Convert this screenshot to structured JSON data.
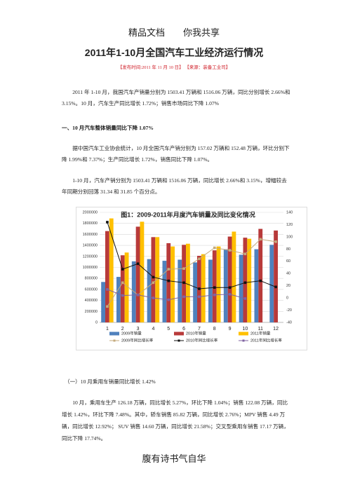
{
  "header": "精品文档　　你我共享",
  "title": "2011年1-10月全国汽车工业经济运行情况",
  "meta": "【发布时间:2011 年 11 月 10 日】 【来源：装备工业司】",
  "paragraphs": [
    "2011 年 1-10 月，我国汽车产销量分别为 1503.41 万辆和 1516.06 万辆，同比分别增长 2.66%和 3.15%。10 月，汽车生产同比增长 1.72%；销售市场同比下降 1.07%",
    "据中国汽车工业协会统计，10 月全国汽车产销分别为 157.02 万辆和 152.48 万辆，环比分别下降 1.99%和 7.37%；生产同比增长 1.72%，销售同比下降 1.07%。",
    "1-10 月，汽车产销分别为 1503.41 万辆和 1516.06 万辆，同比增长 2.66%和 3.15%，增幅较去年同期分别回落 31.34 和 31.85 个百分点。",
    "10 月，乘用车生产 126.18 万辆，同比增长 5.27%，环比下降 1.04%；销售 122.08 万辆，同比增长 1.42%，环比下降 7.48%。其中，轿车销售 85.82 万辆，同比增长 2.76%；MPV 销售 4.49 万辆，同比增长 12.92%； SUV 销售 14.60 万辆，同比增长 21.58%；交叉型乘用车销售 17.17 万辆，同比下降 17.74%。"
  ],
  "headings": [
    "一、10 月汽车整体销量同比下降 1.07%",
    "（一）10 月乘用车销量同比增长 1.42%"
  ],
  "footer": "腹有诗书气自华",
  "chart_data": {
    "type": "bar-line",
    "title": "图1：2009-2011年月度汽车销量及同比变化情况",
    "categories": [
      "1",
      "2",
      "3",
      "4",
      "5",
      "6",
      "7",
      "8",
      "9",
      "10",
      "11",
      "12"
    ],
    "series": [
      {
        "name": "2009年销量",
        "color": "#4f81bd",
        "kind": "bar",
        "values": [
          735000,
          827000,
          1110000,
          1150000,
          1120000,
          1140000,
          1090000,
          1140000,
          1330000,
          1230000,
          1330000,
          1410000
        ]
      },
      {
        "name": "2010年销量",
        "color": "#b83a3a",
        "kind": "bar",
        "values": [
          1660000,
          1220000,
          1740000,
          1550000,
          1440000,
          1410000,
          1210000,
          1310000,
          1560000,
          1540000,
          1700000,
          1670000
        ]
      },
      {
        "name": "2011年销量",
        "color": "#ffc000",
        "kind": "bar",
        "values": [
          1890000,
          1270000,
          1830000,
          1550000,
          1380000,
          1430000,
          1240000,
          1380000,
          1650000,
          1520000,
          null,
          null
        ]
      },
      {
        "name": "2009年同比增长率",
        "color": "#c4ab7e",
        "kind": "line",
        "axis": "y2",
        "values": [
          -14,
          25,
          5,
          25,
          47,
          48,
          64,
          82,
          78,
          72,
          96,
          92
        ]
      },
      {
        "name": "2010年同比增长率",
        "color": "#111111",
        "kind": "line",
        "axis": "y2",
        "values": [
          124,
          47,
          56,
          34,
          28,
          25,
          15,
          17,
          17,
          25,
          28,
          18
        ]
      },
      {
        "name": "2011年同比增长率",
        "color": "#8064a2",
        "kind": "line",
        "axis": "y2",
        "values": [
          14,
          4,
          5,
          0,
          -3,
          2,
          2,
          5,
          6,
          -1,
          null,
          null
        ]
      }
    ],
    "ylim": [
      0,
      2000000
    ],
    "yticks": [
      0,
      200000,
      400000,
      600000,
      800000,
      1000000,
      1200000,
      1400000,
      1600000,
      1800000,
      2000000
    ],
    "y2lim": [
      -40,
      140
    ],
    "y2ticks": [
      -40,
      -20,
      0,
      20,
      40,
      60,
      80,
      100,
      120,
      140
    ],
    "grid": true
  }
}
